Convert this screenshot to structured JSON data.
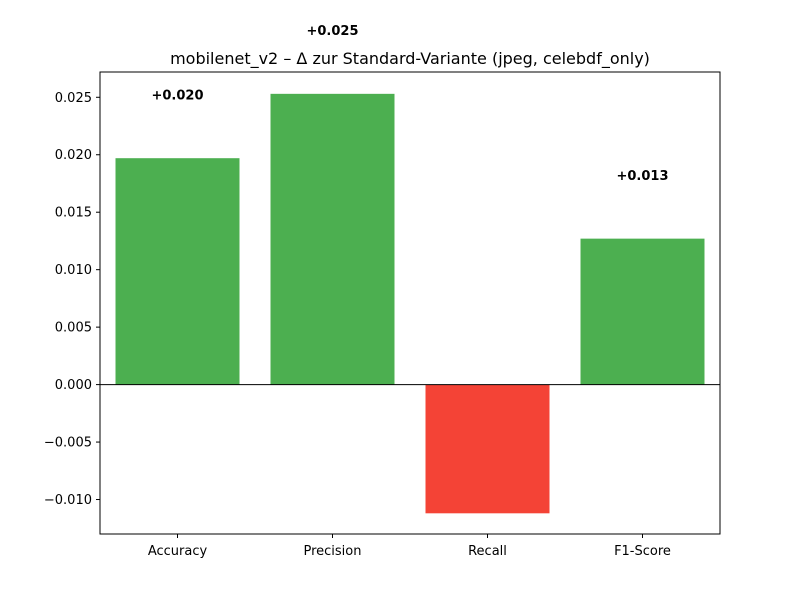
{
  "chart_data": {
    "type": "bar",
    "title": "mobilenet_v2 – Δ zur Standard-Variante (jpeg, celebdf_only)",
    "xlabel": "",
    "ylabel": "",
    "categories": [
      "Accuracy",
      "Precision",
      "Recall",
      "F1-Score"
    ],
    "values": [
      0.0197,
      0.0253,
      -0.0112,
      0.0127
    ],
    "data_labels": [
      "+0.020",
      "+0.025",
      "",
      "+0.013"
    ],
    "ylim": [
      -0.013,
      0.0272
    ],
    "yticks": [
      -0.01,
      -0.005,
      0.0,
      0.005,
      0.01,
      0.015,
      0.02,
      0.025
    ],
    "ytick_labels": [
      "−0.010",
      "−0.005",
      "0.000",
      "0.005",
      "0.010",
      "0.015",
      "0.020",
      "0.025"
    ],
    "colors": {
      "positive": "#4caf50",
      "negative": "#f44336"
    },
    "grid": false,
    "legend": "none"
  }
}
